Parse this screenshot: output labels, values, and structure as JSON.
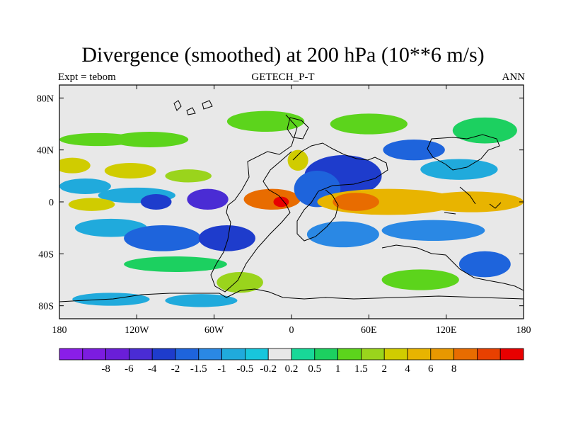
{
  "title": "Divergence (smoothed) at 200 hPa (10**6 m/s)",
  "left_label": "Expt = tebom",
  "center_label": "GETECH_P-T",
  "right_label": "ANN",
  "x_ticks": [
    {
      "lon": -180,
      "label": "180"
    },
    {
      "lon": -120,
      "label": "120W"
    },
    {
      "lon": -60,
      "label": "60W"
    },
    {
      "lon": 0,
      "label": "0"
    },
    {
      "lon": 60,
      "label": "60E"
    },
    {
      "lon": 120,
      "label": "120E"
    },
    {
      "lon": 180,
      "label": "180"
    }
  ],
  "y_ticks": [
    {
      "lat": 80,
      "label": "80N"
    },
    {
      "lat": 40,
      "label": "40N"
    },
    {
      "lat": 0,
      "label": "0"
    },
    {
      "lat": -40,
      "label": "40S"
    },
    {
      "lat": -80,
      "label": "80S"
    }
  ],
  "colorbar": {
    "colors": [
      "#8a1ee8",
      "#7c1ce0",
      "#6a1ed8",
      "#4a2cd4",
      "#1e3ccc",
      "#1e64dc",
      "#2a88e4",
      "#20aadc",
      "#18c6dc",
      "#e8e8e8",
      "#18d898",
      "#1cd060",
      "#5cd41c",
      "#9ad41c",
      "#d0cc00",
      "#e8b400",
      "#e89800",
      "#e86c00",
      "#e84000",
      "#e80000"
    ],
    "labels": [
      "-8",
      "-6",
      "-4",
      "-2",
      "-1.5",
      "-1",
      "-0.5",
      "-0.2",
      "0.2",
      "0.5",
      "1",
      "1.5",
      "2",
      "4",
      "6",
      "8"
    ]
  },
  "blobs": [
    {
      "lon": -150,
      "lat": 48,
      "rx": 30,
      "ry": 5,
      "c": 12
    },
    {
      "lon": -110,
      "lat": 48,
      "rx": 30,
      "ry": 6,
      "c": 12
    },
    {
      "lon": -170,
      "lat": 28,
      "rx": 14,
      "ry": 6,
      "c": 14
    },
    {
      "lon": -125,
      "lat": 24,
      "rx": 20,
      "ry": 6,
      "c": 14
    },
    {
      "lon": -80,
      "lat": 20,
      "rx": 18,
      "ry": 5,
      "c": 13
    },
    {
      "lon": -160,
      "lat": 12,
      "rx": 20,
      "ry": 6,
      "c": 7
    },
    {
      "lon": -120,
      "lat": 5,
      "rx": 30,
      "ry": 6,
      "c": 7
    },
    {
      "lon": -155,
      "lat": -2,
      "rx": 18,
      "ry": 5,
      "c": 14
    },
    {
      "lon": -105,
      "lat": 0,
      "rx": 12,
      "ry": 6,
      "c": 4
    },
    {
      "lon": -65,
      "lat": 2,
      "rx": 16,
      "ry": 8,
      "c": 3
    },
    {
      "lon": -140,
      "lat": -20,
      "rx": 28,
      "ry": 7,
      "c": 7
    },
    {
      "lon": -100,
      "lat": -28,
      "rx": 30,
      "ry": 10,
      "c": 5
    },
    {
      "lon": -50,
      "lat": -28,
      "rx": 22,
      "ry": 10,
      "c": 4
    },
    {
      "lon": -90,
      "lat": -48,
      "rx": 40,
      "ry": 6,
      "c": 11
    },
    {
      "lon": -40,
      "lat": -62,
      "rx": 18,
      "ry": 8,
      "c": 13
    },
    {
      "lon": -140,
      "lat": -75,
      "rx": 30,
      "ry": 5,
      "c": 7
    },
    {
      "lon": -70,
      "lat": -76,
      "rx": 28,
      "ry": 5,
      "c": 7
    },
    {
      "lon": -15,
      "lat": 2,
      "rx": 22,
      "ry": 8,
      "c": 17
    },
    {
      "lon": -8,
      "lat": 0,
      "rx": 6,
      "ry": 4,
      "c": 19
    },
    {
      "lon": 5,
      "lat": 32,
      "rx": 8,
      "ry": 8,
      "c": 14
    },
    {
      "lon": -20,
      "lat": 62,
      "rx": 30,
      "ry": 8,
      "c": 12
    },
    {
      "lon": 40,
      "lat": 20,
      "rx": 30,
      "ry": 16,
      "c": 4
    },
    {
      "lon": 20,
      "lat": 10,
      "rx": 18,
      "ry": 14,
      "c": 5
    },
    {
      "lon": 95,
      "lat": 40,
      "rx": 24,
      "ry": 8,
      "c": 5
    },
    {
      "lon": 75,
      "lat": 0,
      "rx": 55,
      "ry": 10,
      "c": 15
    },
    {
      "lon": 50,
      "lat": 0,
      "rx": 18,
      "ry": 7,
      "c": 17
    },
    {
      "lon": 140,
      "lat": 0,
      "rx": 40,
      "ry": 8,
      "c": 15
    },
    {
      "lon": 40,
      "lat": -25,
      "rx": 28,
      "ry": 10,
      "c": 6
    },
    {
      "lon": 110,
      "lat": -22,
      "rx": 40,
      "ry": 8,
      "c": 6
    },
    {
      "lon": 150,
      "lat": -48,
      "rx": 20,
      "ry": 10,
      "c": 5
    },
    {
      "lon": 100,
      "lat": -60,
      "rx": 30,
      "ry": 8,
      "c": 12
    },
    {
      "lon": 150,
      "lat": 55,
      "rx": 25,
      "ry": 10,
      "c": 11
    },
    {
      "lon": 130,
      "lat": 25,
      "rx": 30,
      "ry": 8,
      "c": 7
    },
    {
      "lon": 60,
      "lat": 60,
      "rx": 30,
      "ry": 8,
      "c": 12
    }
  ]
}
